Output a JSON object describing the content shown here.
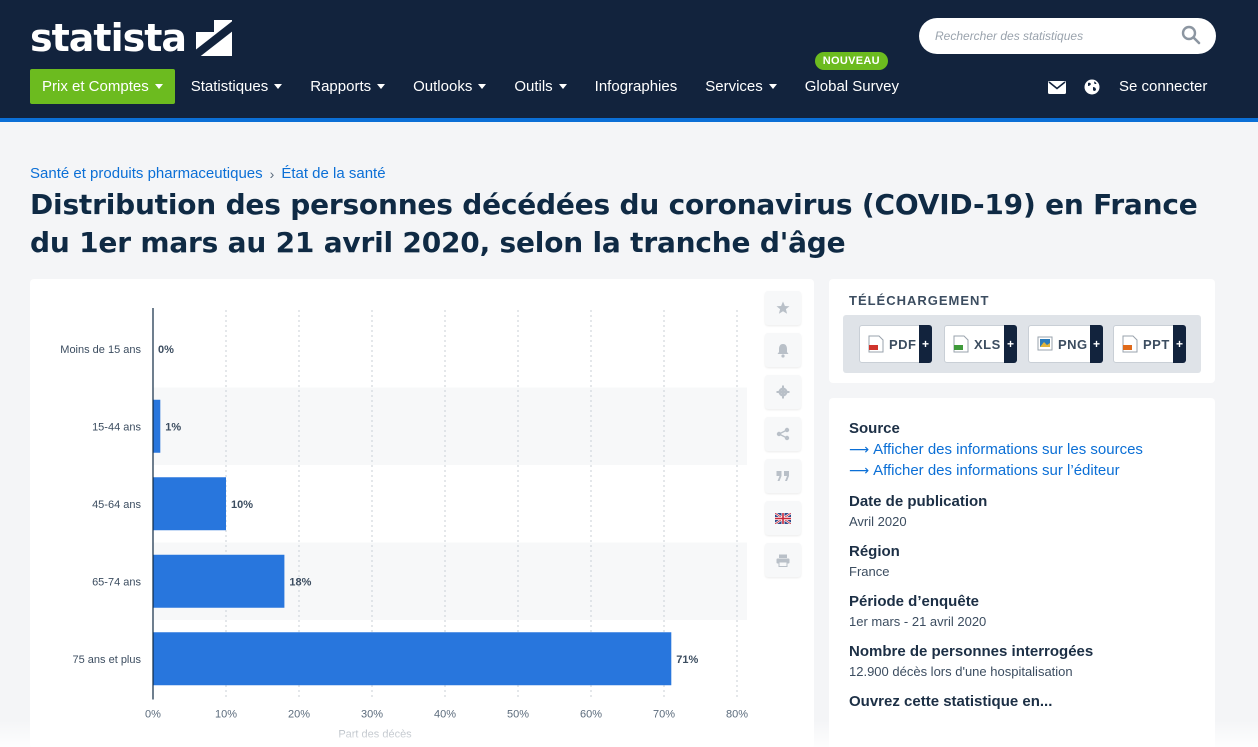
{
  "header": {
    "logo": "statista",
    "search": {
      "placeholder": "Rechercher des statistiques"
    },
    "nav": [
      {
        "label": "Prix et Comptes",
        "dropdown": true
      },
      {
        "label": "Statistiques",
        "dropdown": true
      },
      {
        "label": "Rapports",
        "dropdown": true
      },
      {
        "label": "Outlooks",
        "dropdown": true
      },
      {
        "label": "Outils",
        "dropdown": true
      },
      {
        "label": "Infographies",
        "dropdown": false
      },
      {
        "label": "Services",
        "dropdown": true
      },
      {
        "label": "Global Survey",
        "dropdown": false,
        "badge": "NOUVEAU"
      }
    ],
    "login": "Se connecter"
  },
  "breadcrumb": [
    "Santé et produits pharmaceutiques",
    "État de la santé"
  ],
  "page_title": "Distribution des personnes décédées du coronavirus (COVID-19) en France du 1er mars au 21 avril 2020, selon la tranche d'âge",
  "chart_data": {
    "type": "bar",
    "orientation": "horizontal",
    "categories": [
      "Moins de 15 ans",
      "15-44 ans",
      "45-64 ans",
      "65-74 ans",
      "75 ans et plus"
    ],
    "values": [
      0,
      1,
      10,
      18,
      71
    ],
    "value_labels": [
      "0%",
      "1%",
      "10%",
      "18%",
      "71%"
    ],
    "xlim": [
      0,
      80
    ],
    "xticks": [
      "0%",
      "10%",
      "20%",
      "30%",
      "40%",
      "50%",
      "60%",
      "70%",
      "80%"
    ],
    "bar_color": "#2876dd",
    "grid": true,
    "xlabel": "Part des décès"
  },
  "tools": [
    "star-icon",
    "bell-icon",
    "gear-icon",
    "share-icon",
    "quote-icon",
    "flag-icon",
    "print-icon"
  ],
  "download": {
    "title": "TÉLÉCHARGEMENT",
    "buttons": [
      {
        "label": "PDF",
        "plus": "+",
        "color": "#d0342c"
      },
      {
        "label": "XLS",
        "plus": "+",
        "color": "#3f9a3a"
      },
      {
        "label": "PNG",
        "plus": "+",
        "color": "#2b7bb9"
      },
      {
        "label": "PPT",
        "plus": "+",
        "color": "#e06a1b"
      }
    ]
  },
  "info": {
    "source_heading": "Source",
    "source_links": [
      "Afficher des informations sur les sources",
      "Afficher des informations sur l’éditeur"
    ],
    "publication_heading": "Date de publication",
    "publication_value": "Avril 2020",
    "region_heading": "Région",
    "region_value": "France",
    "period_heading": "Période d’enquête",
    "period_value": "1er mars - 21 avril 2020",
    "respondents_heading": "Nombre de personnes interrogées",
    "respondents_value": "12.900 décès lors d'une hospitalisation",
    "open_heading": "Ouvrez cette statistique en..."
  },
  "colors": {
    "header_bg": "#12233d",
    "accent_green": "#6cbb1f",
    "link_blue": "#0b6fd6"
  }
}
